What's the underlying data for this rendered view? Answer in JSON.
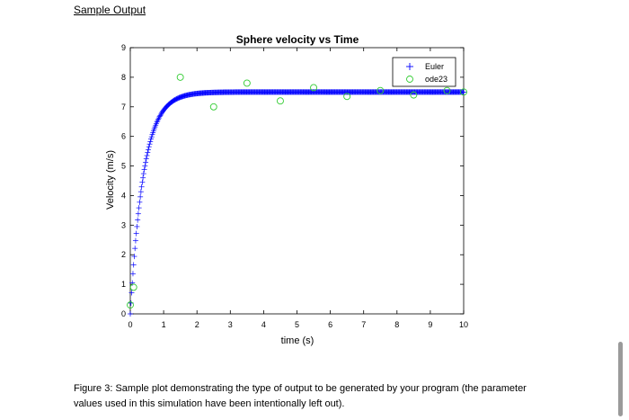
{
  "document": {
    "heading": "Sample Output",
    "caption": "Figure 3: Sample plot demonstrating the type of output to be generated by your program (the parameter values used in this simulation have been intentionally left out)."
  },
  "chart_data": {
    "type": "line",
    "title": "Sphere velocity vs Time",
    "xlabel": "time (s)",
    "ylabel": "Velocity (m/s)",
    "xlim": [
      0,
      10
    ],
    "ylim": [
      0,
      9
    ],
    "xticks": [
      0,
      1,
      2,
      3,
      4,
      5,
      6,
      7,
      8,
      9,
      10
    ],
    "yticks": [
      0,
      1,
      2,
      3,
      4,
      5,
      6,
      7,
      8,
      9
    ],
    "grid": false,
    "legend_position": "top-right",
    "colors": {
      "euler": "#0000ff",
      "ode23": "#33cc33",
      "axes": "#000000"
    },
    "series": [
      {
        "name": "Euler",
        "marker": "+",
        "model": "v(t) = 7.5 * (1 - exp(-t / 0.4)), sampled every 0.02 s from 0 to 10 s",
        "terminal_velocity": 7.5,
        "time_constant": 0.4,
        "dt": 0.02
      },
      {
        "name": "ode23",
        "marker": "o",
        "x": [
          0,
          0.1,
          1.5,
          2.5,
          3.5,
          4.5,
          5.5,
          6.5,
          7.5,
          8.5,
          9.5,
          10
        ],
        "y": [
          0.3,
          0.9,
          8.0,
          7.0,
          7.8,
          7.2,
          7.65,
          7.35,
          7.55,
          7.4,
          7.55,
          7.5
        ]
      }
    ]
  }
}
